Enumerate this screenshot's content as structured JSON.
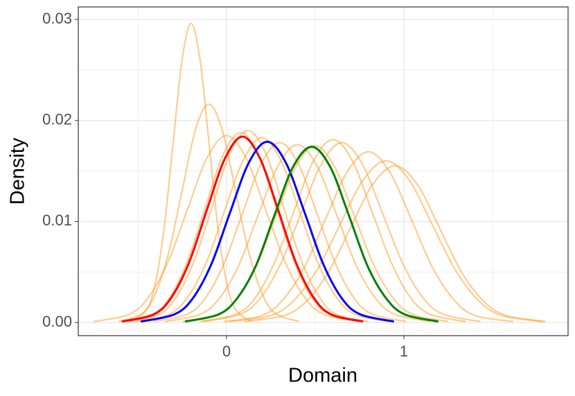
{
  "chart_data": {
    "type": "line",
    "x_label": "Domain",
    "y_label": "Density",
    "xlim": [
      -0.836,
      1.926
    ],
    "ylim": [
      -0.0013,
      0.03124
    ],
    "xticks": [
      0,
      1
    ],
    "xminorticks": [
      -0.5,
      0.5,
      1.5
    ],
    "yticks": [
      {
        "value": 0,
        "label": "0.00"
      },
      {
        "value": 0.01,
        "label": "0.01"
      },
      {
        "value": 0.02,
        "label": "0.02"
      },
      {
        "value": 0.03,
        "label": "0.03"
      }
    ],
    "yminorticks": [
      0.005,
      0.015,
      0.025
    ],
    "grid": true,
    "series": [
      {
        "color": "#ff9a1f",
        "opacity": 0.5,
        "x": [
          -0.54,
          -0.45,
          -0.4,
          -0.35,
          -0.3,
          -0.25,
          -0.2,
          -0.15,
          -0.1,
          -0.05,
          0,
          0.05,
          0.14
        ],
        "values": [
          0.0001,
          0.0013,
          0.004,
          0.0096,
          0.018,
          0.0261,
          0.0296,
          0.0261,
          0.018,
          0.0096,
          0.004,
          0.0013,
          0.0001
        ]
      },
      {
        "color": "#ff9a1f",
        "opacity": 0.5,
        "x": [
          -0.61,
          -0.475,
          -0.4,
          -0.325,
          -0.25,
          -0.175,
          -0.1,
          -0.025,
          0.05,
          0.125,
          0.2,
          0.275,
          0.41
        ],
        "values": [
          0.0001,
          0.0009,
          0.0029,
          0.007,
          0.0131,
          0.0191,
          0.0216,
          0.0191,
          0.0131,
          0.007,
          0.0029,
          0.0009,
          0.0001
        ]
      },
      {
        "color": "#ff9a1f",
        "opacity": 0.5,
        "x": [
          -0.748,
          -0.55,
          -0.44,
          -0.33,
          -0.22,
          -0.11,
          0,
          0.11,
          0.22,
          0.33,
          0.44,
          0.55,
          0.748
        ],
        "values": [
          0.0001,
          0.0008,
          0.0025,
          0.006,
          0.0112,
          0.0163,
          0.0185,
          0.0163,
          0.0112,
          0.006,
          0.0025,
          0.0008,
          0.0001
        ]
      },
      {
        "color": "#ff9a1f",
        "opacity": 0.5,
        "x": [
          -0.56,
          -0.38,
          -0.28,
          -0.18,
          -0.08,
          0.02,
          0.12,
          0.22,
          0.32,
          0.42,
          0.52,
          0.62,
          0.8
        ],
        "values": [
          0.0001,
          0.0008,
          0.0026,
          0.0062,
          0.0115,
          0.0168,
          0.019,
          0.0168,
          0.0115,
          0.0062,
          0.0026,
          0.0008,
          0.0001
        ]
      },
      {
        "color": "#ff9a1f",
        "opacity": 0.5,
        "x": [
          -0.514,
          -0.325,
          -0.22,
          -0.115,
          -0.01,
          0.095,
          0.2,
          0.305,
          0.41,
          0.515,
          0.62,
          0.725,
          0.914
        ],
        "values": [
          0.0001,
          0.0008,
          0.0025,
          0.0059,
          0.0111,
          0.0161,
          0.0183,
          0.0161,
          0.0111,
          0.0059,
          0.0025,
          0.0008,
          0.0001
        ]
      },
      {
        "color": "#ff9a1f",
        "opacity": 0.5,
        "x": [
          -0.414,
          -0.225,
          -0.12,
          -0.015,
          0.09,
          0.195,
          0.3,
          0.405,
          0.51,
          0.615,
          0.72,
          0.825,
          1.014
        ],
        "values": [
          0.0001,
          0.0008,
          0.0024,
          0.0058,
          0.0108,
          0.0157,
          0.0178,
          0.0157,
          0.0108,
          0.0058,
          0.0024,
          0.0008,
          0.0001
        ]
      },
      {
        "color": "#ff9a1f",
        "opacity": 0.5,
        "x": [
          -0.348,
          -0.15,
          -0.04,
          0.07,
          0.18,
          0.29,
          0.4,
          0.51,
          0.62,
          0.73,
          0.84,
          0.95,
          1.148
        ],
        "values": [
          0.0001,
          0.0008,
          0.0024,
          0.0057,
          0.0107,
          0.0155,
          0.0176,
          0.0155,
          0.0107,
          0.0057,
          0.0024,
          0.0008,
          0.0001
        ]
      },
      {
        "color": "#ff9a1f",
        "opacity": 0.5,
        "x": [
          -0.148,
          0.05,
          0.16,
          0.27,
          0.38,
          0.49,
          0.6,
          0.71,
          0.82,
          0.93,
          1.04,
          1.15,
          1.348
        ],
        "values": [
          0.0001,
          0.0008,
          0.0024,
          0.0059,
          0.011,
          0.016,
          0.0181,
          0.016,
          0.011,
          0.0059,
          0.0024,
          0.0008,
          0.0001
        ]
      },
      {
        "color": "#ff9a1f",
        "opacity": 0.5,
        "x": [
          -0.132,
          0.075,
          0.19,
          0.305,
          0.42,
          0.535,
          0.65,
          0.765,
          0.88,
          0.995,
          1.11,
          1.225,
          1.432
        ],
        "values": [
          0.0001,
          0.0008,
          0.0024,
          0.0058,
          0.0108,
          0.0157,
          0.0178,
          0.0157,
          0.0108,
          0.0058,
          0.0024,
          0.0008,
          0.0001
        ]
      },
      {
        "color": "#ff9a1f",
        "opacity": 0.5,
        "x": [
          -0.016,
          0.2,
          0.32,
          0.44,
          0.56,
          0.68,
          0.8,
          0.92,
          1.04,
          1.16,
          1.28,
          1.4,
          1.616
        ],
        "values": [
          0.0001,
          0.0007,
          0.0023,
          0.0055,
          0.0103,
          0.0149,
          0.0169,
          0.0149,
          0.0103,
          0.0055,
          0.0023,
          0.0007,
          0.0001
        ]
      },
      {
        "color": "#ff9a1f",
        "opacity": 0.5,
        "x": [
          0.016,
          0.25,
          0.38,
          0.51,
          0.64,
          0.77,
          0.9,
          1.03,
          1.16,
          1.29,
          1.42,
          1.55,
          1.784
        ],
        "values": [
          0.0001,
          0.0007,
          0.0022,
          0.0052,
          0.0097,
          0.0141,
          0.016,
          0.0141,
          0.0097,
          0.0052,
          0.0022,
          0.0007,
          0.0001
        ]
      },
      {
        "color": "#ff9a1f",
        "opacity": 0.5,
        "x": [
          0.1,
          0.325,
          0.45,
          0.575,
          0.7,
          0.825,
          0.95,
          1.075,
          1.2,
          1.325,
          1.45,
          1.575,
          1.8
        ],
        "values": [
          0.0001,
          0.0007,
          0.0021,
          0.005,
          0.0094,
          0.0137,
          0.0155,
          0.0137,
          0.0094,
          0.005,
          0.0021,
          0.0007,
          0.0001
        ]
      },
      {
        "color": "#ff9a1f",
        "opacity": 0.5,
        "x": [
          -0.6,
          -0.42,
          -0.32,
          -0.22,
          -0.12,
          -0.02,
          0.08,
          0.18,
          0.28,
          0.38,
          0.48,
          0.58,
          0.76
        ],
        "values": [
          0.0001,
          0.0008,
          0.0025,
          0.0061,
          0.0114,
          0.0166,
          0.0188,
          0.0166,
          0.0114,
          0.0061,
          0.0025,
          0.0008,
          0.0001
        ]
      },
      {
        "color": "#ff9a1f",
        "opacity": 0.5,
        "x": [
          -0.248,
          -0.05,
          0.06,
          0.17,
          0.28,
          0.39,
          0.5,
          0.61,
          0.72,
          0.83,
          0.94,
          1.05,
          1.248
        ],
        "values": [
          0.0001,
          0.0008,
          0.0024,
          0.0057,
          0.0106,
          0.0154,
          0.0175,
          0.0154,
          0.0106,
          0.0057,
          0.0024,
          0.0008,
          0.0001
        ]
      },
      {
        "color": "#ff0000",
        "opacity": 1,
        "x": [
          -0.59,
          -0.41,
          -0.31,
          -0.21,
          -0.11,
          -0.01,
          0.09,
          0.19,
          0.29,
          0.39,
          0.49,
          0.59,
          0.77
        ],
        "values": [
          0.0001,
          0.0008,
          0.0025,
          0.006,
          0.0112,
          0.0162,
          0.0184,
          0.0162,
          0.0112,
          0.006,
          0.0025,
          0.0008,
          0.0001
        ]
      },
      {
        "color": "#0000ff",
        "opacity": 1,
        "x": [
          -0.484,
          -0.295,
          -0.19,
          -0.085,
          0.02,
          0.125,
          0.23,
          0.335,
          0.44,
          0.545,
          0.65,
          0.755,
          0.944
        ],
        "values": [
          0.0001,
          0.0008,
          0.0024,
          0.0058,
          0.0109,
          0.0158,
          0.0179,
          0.0158,
          0.0109,
          0.0058,
          0.0024,
          0.0008,
          0.0001
        ]
      },
      {
        "color": "#008000",
        "opacity": 1,
        "x": [
          -0.234,
          -0.045,
          0.06,
          0.165,
          0.27,
          0.375,
          0.48,
          0.585,
          0.69,
          0.795,
          0.9,
          1.005,
          1.194
        ],
        "values": [
          0.0001,
          0.0008,
          0.0024,
          0.0056,
          0.0106,
          0.0154,
          0.0174,
          0.0154,
          0.0106,
          0.0056,
          0.0024,
          0.0008,
          0.0001
        ]
      }
    ]
  }
}
